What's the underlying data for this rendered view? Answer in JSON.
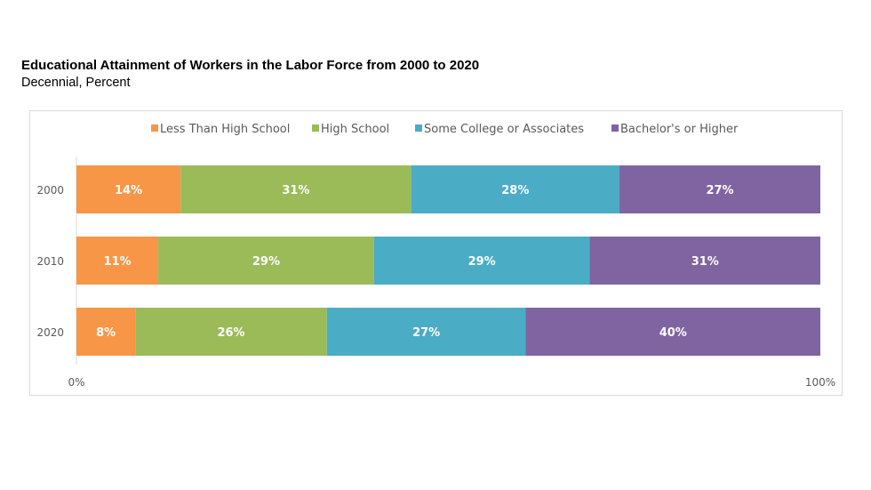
{
  "title": "Educational Attainment of Workers in the Labor Force from 2000 to 2020",
  "subtitle": "Decennial, Percent",
  "chart_data": {
    "type": "bar",
    "orientation": "horizontal",
    "stacked": "100%",
    "title": "Educational Attainment of Workers in the Labor Force from 2000 to 2020",
    "subtitle": "Decennial, Percent",
    "categories": [
      "2000",
      "2010",
      "2020"
    ],
    "series": [
      {
        "name": "Less Than High School",
        "color": "#f79646",
        "values": [
          14,
          11,
          8
        ]
      },
      {
        "name": "High School",
        "color": "#9bbb59",
        "values": [
          31,
          29,
          26
        ]
      },
      {
        "name": "Some College or Associates",
        "color": "#4bacc6",
        "values": [
          28,
          29,
          27
        ]
      },
      {
        "name": "Bachelor's or Higher",
        "color": "#8064a2",
        "values": [
          27,
          31,
          40
        ]
      }
    ],
    "xlim": [
      0,
      100
    ],
    "xticks": [
      "0%",
      "100%"
    ],
    "legend": "top",
    "grid": false
  }
}
